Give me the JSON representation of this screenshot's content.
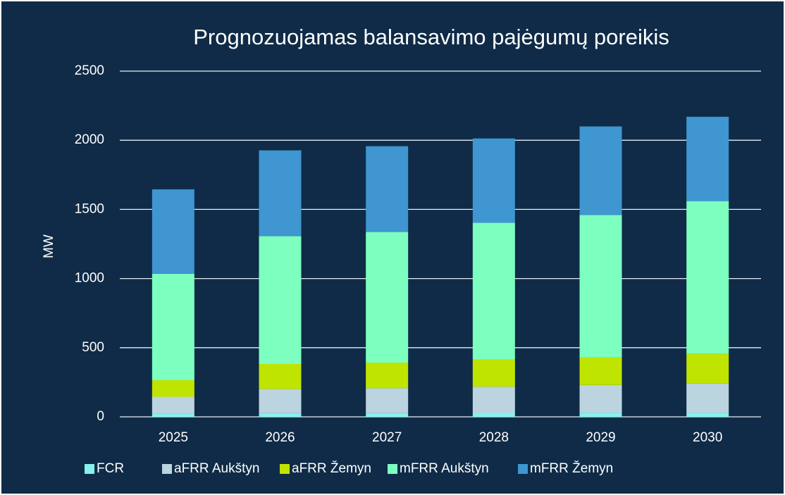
{
  "chart_data": {
    "type": "stacked_bar",
    "title": "Prognozuojamas balansavimo pajėgumų poreikis",
    "y_label": "MW",
    "categories": [
      "2025",
      "2026",
      "2027",
      "2028",
      "2029",
      "2030"
    ],
    "series": [
      {
        "name": "FCR",
        "color": "#85f2ee",
        "values": [
          25,
          27,
          27,
          28,
          30,
          30
        ]
      },
      {
        "name": "aFRR Aukštyn",
        "color": "#bcd4df",
        "values": [
          120,
          175,
          180,
          190,
          200,
          210
        ]
      },
      {
        "name": "aFRR Žemyn",
        "color": "#bfe400",
        "values": [
          120,
          180,
          185,
          195,
          200,
          215
        ]
      },
      {
        "name": "mFRR Aukštyn",
        "color": "#7dffc0",
        "values": [
          770,
          925,
          945,
          990,
          1030,
          1105
        ]
      },
      {
        "name": "mFRR Žemyn",
        "color": "#3f96d1",
        "values": [
          610,
          620,
          620,
          610,
          640,
          610
        ]
      }
    ],
    "ylim": [
      0,
      2500
    ],
    "yticks": [
      0,
      500,
      1000,
      1500,
      2000,
      2500
    ],
    "grid": true,
    "legend": "bottom"
  }
}
